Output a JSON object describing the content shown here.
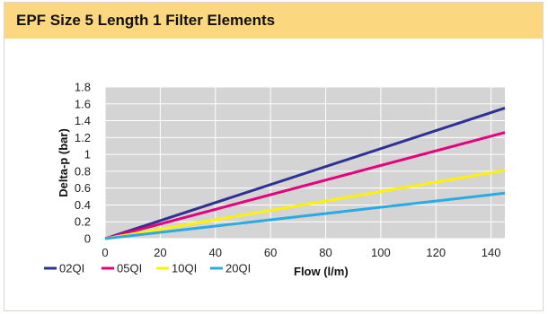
{
  "header": {
    "title": "EPF Size 5 Length 1 Filter Elements"
  },
  "colors": {
    "header_bg": "#fbd77f",
    "plot_bg": "#d4d4d4",
    "grid": "#ffffff"
  },
  "chart_data": {
    "type": "line",
    "title": "",
    "xlabel": "Flow (l/m)",
    "ylabel": "Delta-p (bar)",
    "xlim": [
      0,
      145
    ],
    "ylim": [
      0,
      1.8
    ],
    "x_ticks": [
      "0",
      "20",
      "40",
      "60",
      "80",
      "100",
      "120",
      "140"
    ],
    "y_ticks": [
      "0",
      "0.2",
      "0.4",
      "0.6",
      "0.8",
      "1",
      "1.2",
      "1.4",
      "1.6",
      "1.8"
    ],
    "grid": true,
    "legend_position": "bottom-left",
    "series": [
      {
        "name": "02QI",
        "color": "#2e3192",
        "x": [
          0,
          145
        ],
        "y": [
          0,
          1.55
        ]
      },
      {
        "name": "05QI",
        "color": "#e6007e",
        "x": [
          0,
          145
        ],
        "y": [
          0,
          1.26
        ]
      },
      {
        "name": "10QI",
        "color": "#fff200",
        "x": [
          0,
          145
        ],
        "y": [
          0,
          0.81
        ]
      },
      {
        "name": "20QI",
        "color": "#29abe2",
        "x": [
          0,
          145
        ],
        "y": [
          0,
          0.54
        ]
      }
    ]
  }
}
